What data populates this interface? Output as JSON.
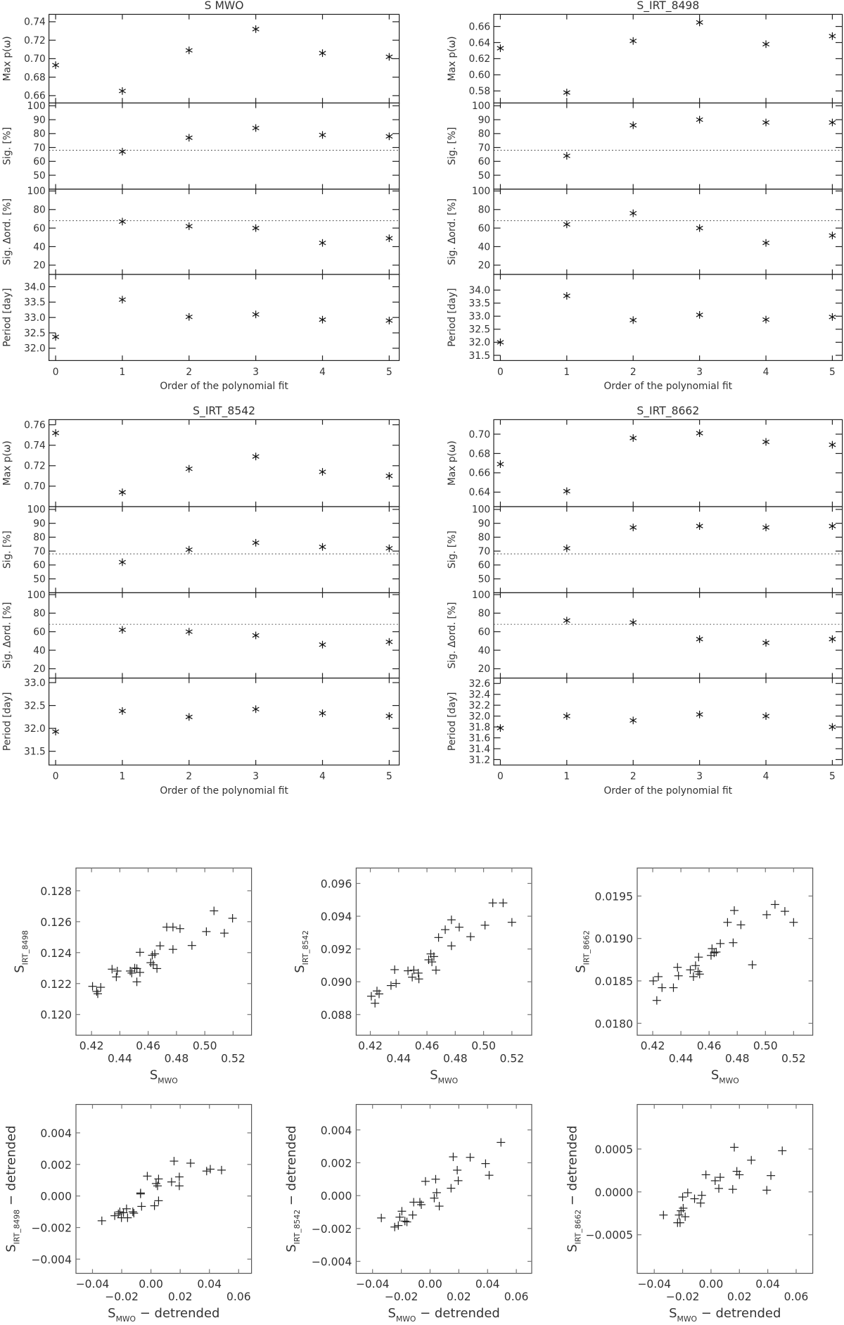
{
  "chart_data": [
    {
      "type": "scatter",
      "marker": "asterisk",
      "title": "S MWO",
      "xlabel": "Order of the polynomial fit",
      "xlim": [
        -0.1,
        5.15
      ],
      "xticks": [
        "0",
        "1",
        "2",
        "3",
        "4",
        "5"
      ],
      "panels": [
        {
          "ylabel": "Max p(ω)",
          "ylim": [
            0.652,
            0.748
          ],
          "yticks": [
            "0.66",
            "0.68",
            "0.70",
            "0.72",
            "0.74"
          ],
          "x": [
            0,
            1,
            2,
            3,
            4,
            5
          ],
          "y": [
            0.693,
            0.665,
            0.709,
            0.732,
            0.706,
            0.702
          ]
        },
        {
          "ylabel": "Sig. [%]",
          "ylim": [
            40,
            102
          ],
          "yticks": [
            "50",
            "60",
            "70",
            "80",
            "90",
            "100"
          ],
          "threshold": 68,
          "x": [
            1,
            2,
            3,
            4,
            5
          ],
          "y": [
            67,
            77,
            84,
            79,
            78
          ]
        },
        {
          "ylabel": "Sig. Δord. [%]",
          "ylim": [
            10,
            102
          ],
          "yticks": [
            "20",
            "40",
            "60",
            "80",
            "100"
          ],
          "threshold": 68,
          "x": [
            1,
            2,
            3,
            4,
            5
          ],
          "y": [
            67,
            62,
            60,
            44,
            49
          ]
        },
        {
          "ylabel": "Period [day]",
          "ylim": [
            31.6,
            34.4
          ],
          "yticks": [
            "32.0",
            "32.5",
            "33.0",
            "33.5",
            "34.0"
          ],
          "x": [
            0,
            1,
            2,
            3,
            4,
            5
          ],
          "y": [
            32.37,
            33.58,
            33.02,
            33.1,
            32.93,
            32.9
          ]
        }
      ]
    },
    {
      "type": "scatter",
      "marker": "asterisk",
      "title": "S_IRT_8498",
      "xlabel": "Order of the polynomial fit",
      "xlim": [
        -0.1,
        5.15
      ],
      "xticks": [
        "0",
        "1",
        "2",
        "3",
        "4",
        "5"
      ],
      "panels": [
        {
          "ylabel": "Max p(ω)",
          "ylim": [
            0.565,
            0.675
          ],
          "yticks": [
            "0.58",
            "0.60",
            "0.62",
            "0.64",
            "0.66"
          ],
          "x": [
            0,
            1,
            2,
            3,
            4,
            5
          ],
          "y": [
            0.633,
            0.578,
            0.642,
            0.665,
            0.638,
            0.648
          ]
        },
        {
          "ylabel": "Sig. [%]",
          "ylim": [
            40,
            102
          ],
          "yticks": [
            "50",
            "60",
            "70",
            "80",
            "90",
            "100"
          ],
          "threshold": 68,
          "x": [
            1,
            2,
            3,
            4,
            5
          ],
          "y": [
            64,
            86,
            90,
            88,
            88
          ]
        },
        {
          "ylabel": "Sig. Δord. [%]",
          "ylim": [
            10,
            102
          ],
          "yticks": [
            "20",
            "40",
            "60",
            "80",
            "100"
          ],
          "threshold": 68,
          "x": [
            1,
            2,
            3,
            4,
            5
          ],
          "y": [
            64,
            76,
            60,
            44,
            52
          ]
        },
        {
          "ylabel": "Period [day]",
          "ylim": [
            31.3,
            34.6
          ],
          "yticks": [
            "31.5",
            "32.0",
            "32.5",
            "33.0",
            "33.5",
            "34.0"
          ],
          "x": [
            0,
            1,
            2,
            3,
            4,
            5
          ],
          "y": [
            32.0,
            33.78,
            32.85,
            33.05,
            32.87,
            32.97
          ]
        }
      ]
    },
    {
      "type": "scatter",
      "marker": "asterisk",
      "title": "S_IRT_8542",
      "xlabel": "Order of the polynomial fit",
      "xlim": [
        -0.1,
        5.15
      ],
      "xticks": [
        "0",
        "1",
        "2",
        "3",
        "4",
        "5"
      ],
      "panels": [
        {
          "ylabel": "Max p(ω)",
          "ylim": [
            0.68,
            0.765
          ],
          "yticks": [
            "0.70",
            "0.72",
            "0.74",
            "0.76"
          ],
          "x": [
            0,
            1,
            2,
            3,
            4,
            5
          ],
          "y": [
            0.752,
            0.694,
            0.717,
            0.729,
            0.714,
            0.71
          ]
        },
        {
          "ylabel": "Sig. [%]",
          "ylim": [
            40,
            102
          ],
          "yticks": [
            "50",
            "60",
            "70",
            "80",
            "90",
            "100"
          ],
          "threshold": 68,
          "x": [
            1,
            2,
            3,
            4,
            5
          ],
          "y": [
            62,
            71,
            76,
            73,
            72
          ]
        },
        {
          "ylabel": "Sig. Δord. [%]",
          "ylim": [
            10,
            102
          ],
          "yticks": [
            "20",
            "40",
            "60",
            "80",
            "100"
          ],
          "threshold": 68,
          "x": [
            1,
            2,
            3,
            4,
            5
          ],
          "y": [
            62,
            60,
            56,
            46,
            49
          ]
        },
        {
          "ylabel": "Period [day]",
          "ylim": [
            31.2,
            33.1
          ],
          "yticks": [
            "31.5",
            "32.0",
            "32.5",
            "33.0"
          ],
          "x": [
            0,
            1,
            2,
            3,
            4,
            5
          ],
          "y": [
            31.93,
            32.38,
            32.25,
            32.42,
            32.33,
            32.27
          ]
        }
      ]
    },
    {
      "type": "scatter",
      "marker": "asterisk",
      "title": "S_IRT_8662",
      "xlabel": "Order of the polynomial fit",
      "xlim": [
        -0.1,
        5.15
      ],
      "xticks": [
        "0",
        "1",
        "2",
        "3",
        "4",
        "5"
      ],
      "panels": [
        {
          "ylabel": "Max p(ω)",
          "ylim": [
            0.625,
            0.715
          ],
          "yticks": [
            "0.64",
            "0.66",
            "0.68",
            "0.70"
          ],
          "x": [
            0,
            1,
            2,
            3,
            4,
            5
          ],
          "y": [
            0.669,
            0.641,
            0.696,
            0.701,
            0.692,
            0.689
          ]
        },
        {
          "ylabel": "Sig. [%]",
          "ylim": [
            40,
            102
          ],
          "yticks": [
            "50",
            "60",
            "70",
            "80",
            "90",
            "100"
          ],
          "threshold": 68,
          "x": [
            1,
            2,
            3,
            4,
            5
          ],
          "y": [
            72,
            87,
            88,
            87,
            88
          ]
        },
        {
          "ylabel": "Sig. Δord. [%]",
          "ylim": [
            10,
            102
          ],
          "yticks": [
            "20",
            "40",
            "60",
            "80",
            "100"
          ],
          "threshold": 68,
          "x": [
            1,
            2,
            3,
            4,
            5
          ],
          "y": [
            72,
            70,
            52,
            48,
            52
          ]
        },
        {
          "ylabel": "Period [day]",
          "ylim": [
            31.1,
            32.7
          ],
          "yticks": [
            "31.2",
            "31.4",
            "31.6",
            "31.8",
            "32.0",
            "32.2",
            "32.4",
            "32.6"
          ],
          "x": [
            0,
            1,
            2,
            3,
            4,
            5
          ],
          "y": [
            31.78,
            32.0,
            31.92,
            32.03,
            32.0,
            31.8
          ]
        }
      ]
    },
    {
      "type": "scatter",
      "marker": "plus",
      "xlabel": "S",
      "xlabel_sub": "MWO",
      "xlabel_suffix": "",
      "ylabel": "S",
      "ylabel_sub": "IRT_8498",
      "ylabel_suffix": "",
      "xlim": [
        0.409,
        0.533
      ],
      "ylim": [
        0.11866,
        0.12947
      ],
      "xticks": [
        "0.42",
        "0.44",
        "0.46",
        "0.48",
        "0.50",
        "0.52"
      ],
      "yticks": [
        "0.120",
        "0.122",
        "0.124",
        "0.126",
        "0.128"
      ],
      "x": [
        0.4207,
        0.4236,
        0.4244,
        0.4265,
        0.4345,
        0.4375,
        0.4382,
        0.4473,
        0.4484,
        0.4505,
        0.452,
        0.452,
        0.4542,
        0.4542,
        0.4618,
        0.4629,
        0.4636,
        0.4647,
        0.4662,
        0.4684,
        0.4731,
        0.4775,
        0.4775,
        0.4825,
        0.4909,
        0.5011,
        0.5065,
        0.5138,
        0.5196
      ],
      "y": [
        0.12182,
        0.12149,
        0.12134,
        0.12176,
        0.12293,
        0.12243,
        0.12281,
        0.12281,
        0.12268,
        0.123,
        0.12297,
        0.12211,
        0.12402,
        0.12272,
        0.12335,
        0.12383,
        0.12322,
        0.12392,
        0.12297,
        0.12444,
        0.12565,
        0.12565,
        0.12421,
        0.12555,
        0.12446,
        0.12536,
        0.1267,
        0.12526,
        0.12622
      ]
    },
    {
      "type": "scatter",
      "marker": "plus",
      "xlabel": "S",
      "xlabel_sub": "MWO",
      "xlabel_suffix": "",
      "ylabel": "S",
      "ylabel_sub": "IRT_8542",
      "ylabel_suffix": "",
      "xlim": [
        0.41,
        0.534
      ],
      "ylim": [
        0.08674,
        0.09694
      ],
      "xticks": [
        "0.42",
        "0.44",
        "0.46",
        "0.48",
        "0.50",
        "0.52"
      ],
      "yticks": [
        "0.088",
        "0.090",
        "0.092",
        "0.094",
        "0.096"
      ],
      "x": [
        0.4207,
        0.4233,
        0.4247,
        0.4262,
        0.4346,
        0.4372,
        0.4382,
        0.4466,
        0.4496,
        0.4507,
        0.4539,
        0.4543,
        0.4612,
        0.4627,
        0.4635,
        0.4649,
        0.4664,
        0.4682,
        0.4729,
        0.4773,
        0.4773,
        0.4828,
        0.4908,
        0.501,
        0.5065,
        0.5138,
        0.52
      ],
      "y": [
        0.08912,
        0.08869,
        0.08944,
        0.08926,
        0.08977,
        0.09074,
        0.0899,
        0.09067,
        0.09028,
        0.09071,
        0.09053,
        0.09017,
        0.09134,
        0.0917,
        0.09121,
        0.09154,
        0.09071,
        0.0927,
        0.09318,
        0.09378,
        0.09219,
        0.09333,
        0.09275,
        0.09345,
        0.09481,
        0.09481,
        0.09363
      ]
    },
    {
      "type": "scatter",
      "marker": "plus",
      "xlabel": "S",
      "xlabel_sub": "MWO",
      "xlabel_suffix": "",
      "ylabel": "S",
      "ylabel_sub": "IRT_8662",
      "ylabel_suffix": "",
      "xlim": [
        0.409,
        0.5336
      ],
      "ylim": [
        0.01786,
        0.01983
      ],
      "xticks": [
        "0.42",
        "0.44",
        "0.46",
        "0.48",
        "0.50",
        "0.52"
      ],
      "yticks": [
        "0.0180",
        "0.0185",
        "0.0190",
        "0.0195"
      ],
      "x": [
        0.4204,
        0.4229,
        0.424,
        0.4266,
        0.4347,
        0.4376,
        0.4383,
        0.4467,
        0.4489,
        0.4504,
        0.4522,
        0.4526,
        0.4533,
        0.4614,
        0.4621,
        0.4636,
        0.4651,
        0.468,
        0.4731,
        0.4771,
        0.4779,
        0.4826,
        0.4907,
        0.5009,
        0.5068,
        0.5138,
        0.52
      ],
      "y": [
        0.0185,
        0.01827,
        0.01855,
        0.01842,
        0.01842,
        0.01866,
        0.01856,
        0.01863,
        0.01855,
        0.01868,
        0.01861,
        0.01878,
        0.01858,
        0.0188,
        0.01888,
        0.01883,
        0.01884,
        0.01894,
        0.01919,
        0.01895,
        0.01933,
        0.01916,
        0.01869,
        0.01928,
        0.0194,
        0.01932,
        0.01919
      ]
    },
    {
      "type": "scatter",
      "marker": "plus",
      "xlabel": "S",
      "xlabel_sub": "MWO",
      "xlabel_suffix": " − detrended",
      "ylabel": "S",
      "ylabel_sub": "IRT_8498",
      "ylabel_suffix": " − detrended",
      "xlim": [
        -0.0513,
        0.0688
      ],
      "ylim": [
        -0.0049,
        0.0058
      ],
      "xticks": [
        "−0.04",
        "−0.02",
        "0.00",
        "0.02",
        "0.04",
        "0.06"
      ],
      "yticks": [
        "−0.004",
        "−0.002",
        "0.000",
        "0.002",
        "0.004"
      ],
      "x": [
        -0.0336,
        -0.0248,
        -0.0223,
        -0.0213,
        -0.0202,
        -0.0188,
        -0.0167,
        -0.016,
        -0.0124,
        -0.0117,
        -0.0064,
        -0.0071,
        -0.0071,
        -0.0025,
        0.0024,
        0.0035,
        0.0045,
        0.0052,
        0.0052,
        0.0141,
        0.0158,
        0.0194,
        0.0194,
        0.0271,
        0.0381,
        0.0406,
        0.0483
      ],
      "y": [
        -0.00157,
        -0.00125,
        -0.00113,
        -0.001,
        -0.00138,
        -0.00106,
        -0.00081,
        -0.00138,
        -0.001,
        -0.00109,
        -0.00066,
        0.00019,
        0.00013,
        0.00126,
        -0.00062,
        0.00079,
        0.00064,
        0.00108,
        -0.0003,
        0.00089,
        0.00221,
        0.00121,
        0.00064,
        0.00208,
        0.00158,
        0.0017,
        0.00164
      ]
    },
    {
      "type": "scatter",
      "marker": "plus",
      "xlabel": "S",
      "xlabel_sub": "MWO",
      "xlabel_suffix": " − detrended",
      "ylabel": "S",
      "ylabel_sub": "IRT_8542",
      "ylabel_suffix": " − detrended",
      "xlim": [
        -0.0514,
        0.0707
      ],
      "ylim": [
        -0.00473,
        0.00555
      ],
      "xticks": [
        "−0.04",
        "−0.02",
        "0.00",
        "0.02",
        "0.04",
        "0.06"
      ],
      "yticks": [
        "−0.004",
        "−0.002",
        "0.000",
        "0.002",
        "0.004"
      ],
      "x": [
        -0.0339,
        -0.0246,
        -0.0221,
        -0.0211,
        -0.0196,
        -0.0175,
        -0.0161,
        -0.0121,
        -0.0114,
        -0.0071,
        -0.0061,
        -0.0032,
        0.0029,
        0.0039,
        0.0046,
        0.0064,
        0.0146,
        0.0161,
        0.0189,
        0.0196,
        0.0279,
        0.0386,
        0.0411,
        0.0493
      ],
      "y": [
        -0.00136,
        -0.00191,
        -0.00182,
        -0.00131,
        -0.00095,
        -0.00155,
        -0.0016,
        -0.00118,
        -0.0004,
        -0.0004,
        -0.00055,
        0.00087,
        -0.00015,
        0.001,
        0.00018,
        -0.00064,
        0.00045,
        0.00236,
        0.00155,
        0.00091,
        0.00233,
        0.00195,
        0.00124,
        0.00324
      ]
    },
    {
      "type": "scatter",
      "marker": "plus",
      "xlabel": "S",
      "xlabel_sub": "MWO",
      "xlabel_suffix": " − detrended",
      "ylabel": "S",
      "ylabel_sub": "IRT_8662",
      "ylabel_suffix": " − detrended",
      "xlim": [
        -0.052,
        0.0717
      ],
      "ylim": [
        -0.00095,
        0.00102
      ],
      "xticks": [
        "−0.04",
        "−0.02",
        "0.00",
        "0.02",
        "0.04",
        "0.06"
      ],
      "yticks": [
        "−0.0005",
        "0.0000",
        "0.0005"
      ],
      "x": [
        -0.0335,
        -0.0236,
        -0.0225,
        -0.0218,
        -0.0211,
        -0.02,
        -0.0196,
        -0.0182,
        -0.0164,
        -0.0116,
        -0.0073,
        -0.0065,
        -0.0036,
        0.0029,
        0.0055,
        0.0065,
        0.0153,
        0.0164,
        0.0182,
        0.02,
        0.0284,
        0.0393,
        0.0422,
        0.0502
      ],
      "y": [
        -0.00027,
        -0.00036,
        -0.00027,
        -0.00036,
        -0.00022,
        -6e-05,
        -0.00019,
        -0.00029,
        -1e-05,
        -8e-05,
        -0.00013,
        -4e-05,
        0.0002,
        0.00013,
        4e-05,
        0.00017,
        3e-05,
        0.00052,
        0.00024,
        0.0002,
        0.00037,
        2e-05,
        0.00019,
        0.00048
      ]
    }
  ]
}
